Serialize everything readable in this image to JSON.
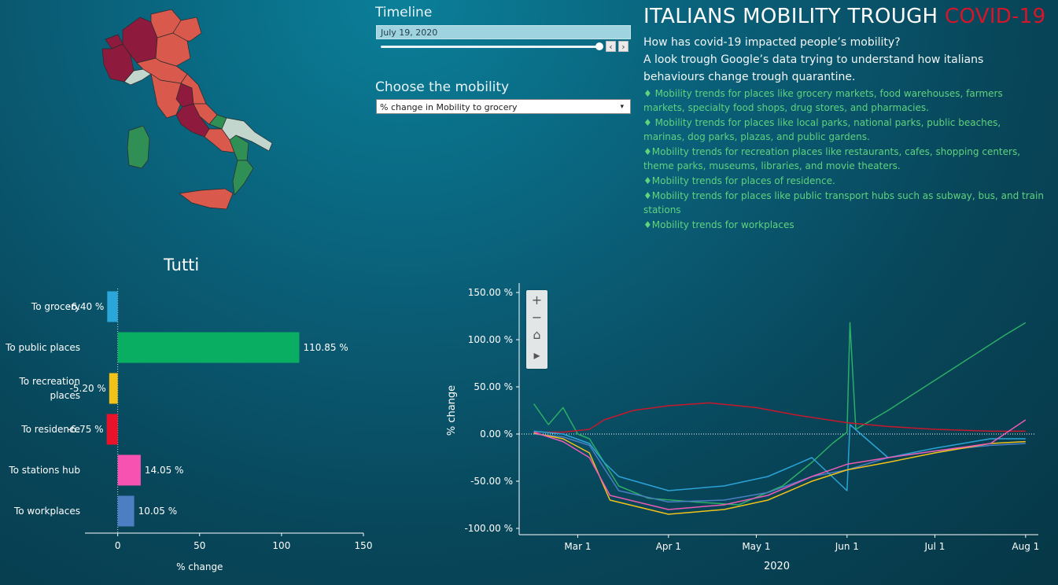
{
  "timeline": {
    "title": "Timeline",
    "date": "July 19, 2020",
    "prev_label": "‹",
    "next_label": "›",
    "slider_position": 0.98
  },
  "mobility": {
    "title": "Choose the mobility",
    "selected": "% change in Mobility to grocery",
    "caret": "▾"
  },
  "header": {
    "title_main": "ITALIANS MOBILITY TROUGH ",
    "title_accent": "COVID-19",
    "subtitle_line1": "How has covid-19 impacted people’s mobility?",
    "subtitle_line2": "A look trough Google’s data trying to understand how italians behaviours change trough quarantine."
  },
  "notes": [
    "♦ Mobility trends for places like grocery markets, food warehouses, farmers markets, specialty food shops, drug stores, and pharmacies.",
    "♦ Mobility trends for places like local parks, national parks, public beaches, marinas, dog parks, plazas, and public gardens.",
    "♦Mobility trends for recreation places like restaurants, cafes, shopping centers, theme parks, museums, libraries, and movie theaters.",
    "♦Mobility trends for places of residence.",
    "♦Mobility trends for places like public transport hubs such as subway, bus, and train stations",
    "♦Mobility trends for workplaces"
  ],
  "map": {
    "colors": {
      "dark_red": "#8e1a3e",
      "red": "#d95a4c",
      "pale": "#c3d6cd",
      "green": "#2f8f55"
    }
  },
  "zoom_toolbar": {
    "zoom_in": "+",
    "zoom_out": "−",
    "home": "⌂",
    "expand": "▸"
  },
  "chart_data": [
    {
      "type": "bar",
      "title": "Tutti",
      "categories": [
        "To grocery",
        "To public places",
        "To recreation places",
        "To residence",
        "To stations hub",
        "To workplaces"
      ],
      "category_lines": [
        [
          "To grocery"
        ],
        [
          "To public places"
        ],
        [
          "To recreation",
          "places"
        ],
        [
          "To residence"
        ],
        [
          "To stations hub"
        ],
        [
          "To workplaces"
        ]
      ],
      "values": [
        -6.4,
        110.85,
        -5.2,
        -6.75,
        14.05,
        10.05
      ],
      "value_labels": [
        "-6.40 %",
        "110.85 %",
        "-5.20 %",
        "-6.75 %",
        "14.05 %",
        "10.05 %"
      ],
      "colors": [
        "#2aa7d8",
        "#0aae62",
        "#f2c218",
        "#e8122a",
        "#f752b2",
        "#4b7ec2"
      ],
      "xlabel": "% change",
      "xlim": [
        -20,
        150
      ],
      "xticks": [
        0,
        50,
        100,
        150
      ],
      "xtick_labels": [
        "0",
        "50",
        "100",
        "150"
      ]
    },
    {
      "type": "line",
      "xlabel": "2020",
      "ylabel": "% change",
      "ylim": [
        -100,
        150
      ],
      "yticks": [
        150,
        100,
        50,
        0,
        -50,
        -100
      ],
      "ytick_labels": [
        "150.00 %",
        "100.00 %",
        "50.00 %",
        "0.00 %",
        "-50.00 %",
        "-100.00 %"
      ],
      "xticks": [
        "2020-03-01",
        "2020-04-01",
        "2020-05-01",
        "2020-06-01",
        "2020-07-01",
        "2020-08-01"
      ],
      "xtick_labels": [
        "Mar 1",
        "Apr 1",
        "May 1",
        "Jun 1",
        "Jul 1",
        "Aug 1"
      ],
      "xlim": [
        "2020-02-10",
        "2020-08-04"
      ],
      "series": [
        {
          "color": "#2bae66",
          "points": [
            [
              "2020-02-15",
              32
            ],
            [
              "2020-02-20",
              10
            ],
            [
              "2020-02-25",
              28
            ],
            [
              "2020-03-01",
              0
            ],
            [
              "2020-03-05",
              -5
            ],
            [
              "2020-03-10",
              -30
            ],
            [
              "2020-03-15",
              -55
            ],
            [
              "2020-03-25",
              -68
            ],
            [
              "2020-04-10",
              -72
            ],
            [
              "2020-04-25",
              -75
            ],
            [
              "2020-05-10",
              -55
            ],
            [
              "2020-05-20",
              -30
            ],
            [
              "2020-05-27",
              -10
            ],
            [
              "2020-06-01",
              2
            ],
            [
              "2020-06-02",
              118
            ],
            [
              "2020-06-04",
              5
            ],
            [
              "2020-06-15",
              25
            ],
            [
              "2020-06-25",
              45
            ],
            [
              "2020-07-05",
              65
            ],
            [
              "2020-07-15",
              85
            ],
            [
              "2020-07-25",
              105
            ],
            [
              "2020-08-01",
              118
            ]
          ]
        },
        {
          "color": "#c7182c",
          "points": [
            [
              "2020-02-15",
              2
            ],
            [
              "2020-02-25",
              2
            ],
            [
              "2020-03-05",
              5
            ],
            [
              "2020-03-10",
              15
            ],
            [
              "2020-03-20",
              25
            ],
            [
              "2020-04-01",
              30
            ],
            [
              "2020-04-15",
              33
            ],
            [
              "2020-05-01",
              28
            ],
            [
              "2020-05-15",
              20
            ],
            [
              "2020-06-01",
              12
            ],
            [
              "2020-06-15",
              8
            ],
            [
              "2020-07-01",
              5
            ],
            [
              "2020-07-20",
              3
            ],
            [
              "2020-08-01",
              3
            ]
          ]
        },
        {
          "color": "#2ba3d6",
          "points": [
            [
              "2020-02-15",
              3
            ],
            [
              "2020-02-25",
              0
            ],
            [
              "2020-03-05",
              -10
            ],
            [
              "2020-03-10",
              -30
            ],
            [
              "2020-03-15",
              -45
            ],
            [
              "2020-04-01",
              -60
            ],
            [
              "2020-04-20",
              -55
            ],
            [
              "2020-05-05",
              -45
            ],
            [
              "2020-05-20",
              -25
            ],
            [
              "2020-06-01",
              -60
            ],
            [
              "2020-06-02",
              10
            ],
            [
              "2020-06-15",
              -25
            ],
            [
              "2020-07-01",
              -15
            ],
            [
              "2020-07-20",
              -5
            ],
            [
              "2020-08-01",
              -5
            ]
          ]
        },
        {
          "color": "#4b7ec2",
          "points": [
            [
              "2020-02-15",
              0
            ],
            [
              "2020-02-25",
              -3
            ],
            [
              "2020-03-05",
              -12
            ],
            [
              "2020-03-15",
              -60
            ],
            [
              "2020-04-01",
              -72
            ],
            [
              "2020-04-20",
              -70
            ],
            [
              "2020-05-05",
              -62
            ],
            [
              "2020-05-20",
              -45
            ],
            [
              "2020-06-01",
              -38
            ],
            [
              "2020-06-15",
              -25
            ],
            [
              "2020-07-01",
              -18
            ],
            [
              "2020-07-20",
              -12
            ],
            [
              "2020-08-01",
              -10
            ]
          ]
        },
        {
          "color": "#f2c218",
          "points": [
            [
              "2020-02-15",
              1
            ],
            [
              "2020-02-25",
              -5
            ],
            [
              "2020-03-05",
              -20
            ],
            [
              "2020-03-12",
              -70
            ],
            [
              "2020-04-01",
              -85
            ],
            [
              "2020-04-20",
              -80
            ],
            [
              "2020-05-05",
              -70
            ],
            [
              "2020-05-20",
              -50
            ],
            [
              "2020-06-01",
              -38
            ],
            [
              "2020-06-15",
              -30
            ],
            [
              "2020-07-01",
              -20
            ],
            [
              "2020-07-20",
              -10
            ],
            [
              "2020-08-01",
              -8
            ]
          ]
        },
        {
          "color": "#ec5bb5",
          "points": [
            [
              "2020-02-15",
              2
            ],
            [
              "2020-02-25",
              -8
            ],
            [
              "2020-03-05",
              -25
            ],
            [
              "2020-03-12",
              -65
            ],
            [
              "2020-04-01",
              -80
            ],
            [
              "2020-04-20",
              -75
            ],
            [
              "2020-05-05",
              -65
            ],
            [
              "2020-05-20",
              -45
            ],
            [
              "2020-06-01",
              -32
            ],
            [
              "2020-06-15",
              -25
            ],
            [
              "2020-07-01",
              -18
            ],
            [
              "2020-07-20",
              -10
            ],
            [
              "2020-08-01",
              15
            ]
          ]
        }
      ]
    }
  ]
}
